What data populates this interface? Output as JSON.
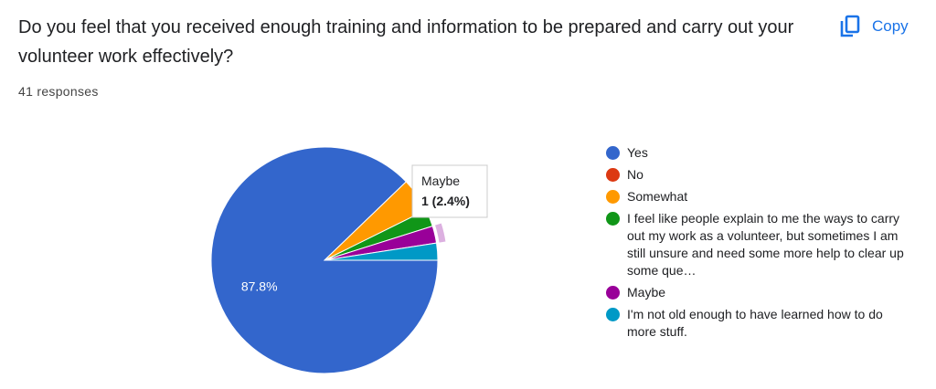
{
  "question": {
    "title": "Do you feel that you received enough training and information to be prepared and carry out your volunteer work effectively?",
    "responses": "41 responses",
    "copy_label": "Copy",
    "copy_icon": "copy-icon"
  },
  "chart_data": {
    "type": "pie",
    "total": 41,
    "slices": [
      {
        "label": "Yes",
        "count": 36,
        "percent": 87.8,
        "color": "#3366cc",
        "data_label": "87.8%"
      },
      {
        "label": "No",
        "count": 0,
        "percent": 0,
        "color": "#dc3912",
        "data_label": ""
      },
      {
        "label": "Somewhat",
        "count": 2,
        "percent": 4.9,
        "color": "#ff9900",
        "data_label": ""
      },
      {
        "label": "I feel like people explain to me the ways to carry out my work as a volunteer, but sometimes I am still unsure and need some more help to clear up some que…",
        "count": 1,
        "percent": 2.4,
        "color": "#109618",
        "data_label": ""
      },
      {
        "label": "Maybe",
        "count": 1,
        "percent": 2.4,
        "color": "#990099",
        "data_label": ""
      },
      {
        "label": "I'm not old enough to have learned how to do more stuff.",
        "count": 1,
        "percent": 2.4,
        "color": "#0099c6",
        "data_label": ""
      }
    ],
    "highlight_color": "#dcb0e0",
    "tooltip": {
      "label": "Maybe",
      "value": "1 (2.4%)"
    },
    "legend_position": "right"
  }
}
